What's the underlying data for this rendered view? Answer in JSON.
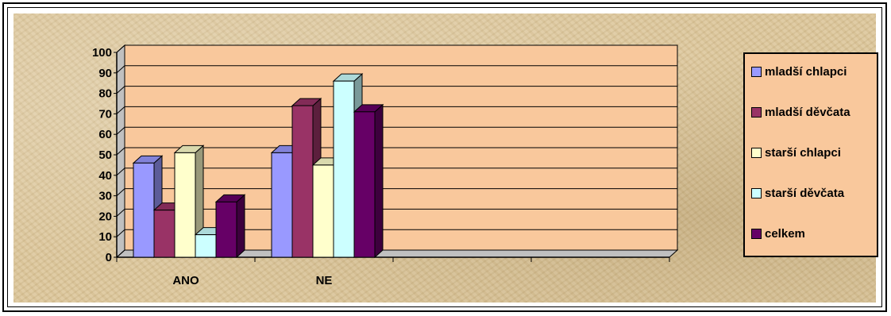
{
  "chart_data": {
    "type": "bar",
    "categories": [
      "ANO",
      "NE"
    ],
    "series": [
      {
        "name": "mladší chlapci",
        "values": [
          46,
          51
        ],
        "color": "#9999ff"
      },
      {
        "name": "mladší děvčata",
        "values": [
          23,
          74
        ],
        "color": "#993366"
      },
      {
        "name": "starší chlapci",
        "values": [
          51,
          45
        ],
        "color": "#ffffcc"
      },
      {
        "name": "starší děvčata",
        "values": [
          11,
          86
        ],
        "color": "#ccffff"
      },
      {
        "name": "celkem",
        "values": [
          27,
          71
        ],
        "color": "#660066"
      }
    ],
    "ylim": [
      0,
      100
    ],
    "yticks": [
      "0",
      "10",
      "20",
      "30",
      "40",
      "50",
      "60",
      "70",
      "80",
      "90",
      "100"
    ],
    "grid": true,
    "legend_position": "right",
    "plot_background": "#f9c89c"
  }
}
